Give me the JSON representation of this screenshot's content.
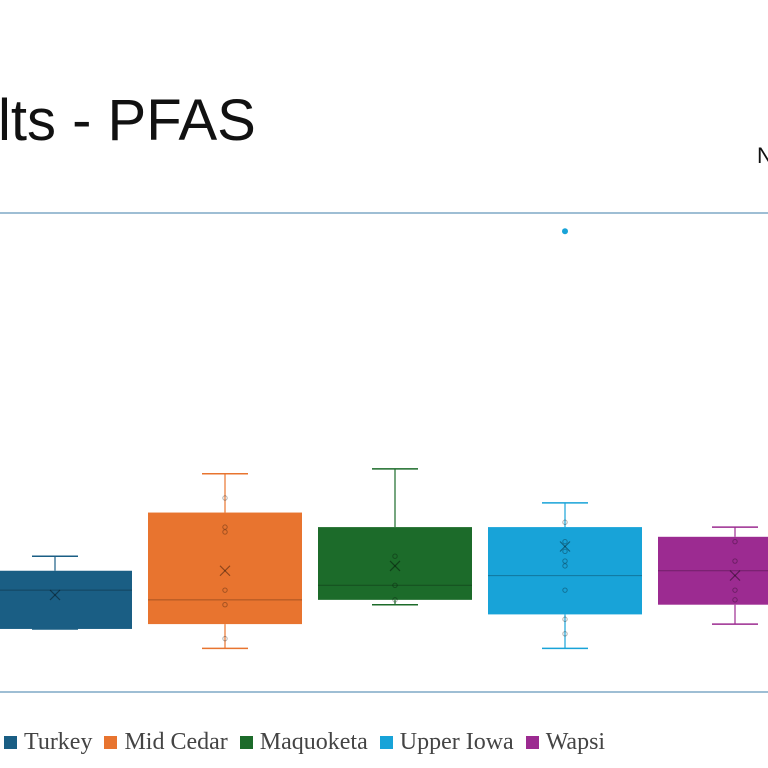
{
  "slide": {
    "title": "lts - PFAS",
    "corner_text": "N"
  },
  "chart_data": {
    "type": "box",
    "title": "",
    "xlabel": "",
    "ylabel": "",
    "ylim": [
      0,
      100
    ],
    "grid": false,
    "legend_position": "bottom-left",
    "series": [
      {
        "name": "Turkey",
        "color": "#1a5e84",
        "whisker_low": 13,
        "q1": 13,
        "median": 21,
        "q3": 25,
        "whisker_high": 28,
        "mean": 20,
        "points": [],
        "outliers": []
      },
      {
        "name": "Mid Cedar",
        "color": "#e8742f",
        "whisker_low": 9,
        "q1": 14,
        "median": 19,
        "q3": 37,
        "whisker_high": 45,
        "mean": 25,
        "points": [
          11,
          18,
          21,
          33,
          34,
          40
        ],
        "outliers": []
      },
      {
        "name": "Maquoketa",
        "color": "#1c6b2a",
        "whisker_low": 18,
        "q1": 19,
        "median": 22,
        "q3": 34,
        "whisker_high": 46,
        "mean": 26,
        "points": [
          19,
          22,
          28
        ],
        "outliers": []
      },
      {
        "name": "Upper Iowa",
        "color": "#18a3d8",
        "whisker_low": 9,
        "q1": 16,
        "median": 24,
        "q3": 34,
        "whisker_high": 39,
        "mean": 30,
        "points": [
          12,
          15,
          21,
          26,
          27,
          29,
          31,
          35
        ],
        "outliers": [
          95
        ]
      },
      {
        "name": "Wapsi",
        "color": "#9c2b91",
        "whisker_low": 14,
        "q1": 18,
        "median": 25,
        "q3": 32,
        "whisker_high": 34,
        "mean": 24,
        "points": [
          19,
          21,
          27,
          31
        ],
        "outliers": []
      }
    ]
  }
}
